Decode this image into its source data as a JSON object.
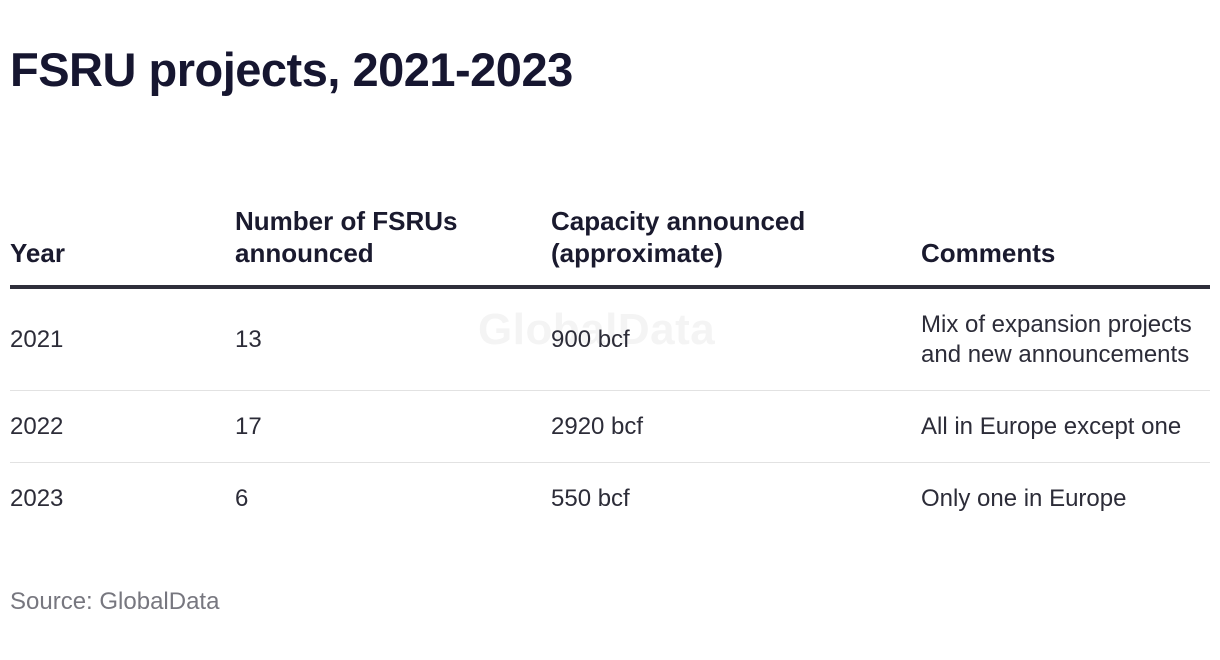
{
  "title": "FSRU projects, 2021-2023",
  "watermark": "GlobalData",
  "source": "Source: GlobalData",
  "chart_data": {
    "type": "table",
    "title": "FSRU projects, 2021-2023",
    "columns": [
      "Year",
      "Number of FSRUs announced",
      "Capacity announced (approximate)",
      "Comments"
    ],
    "rows": [
      [
        "2021",
        "13",
        "900 bcf",
        "Mix of expansion projects and new announcements"
      ],
      [
        "2022",
        "17",
        "2920 bcf",
        "All in Europe except one"
      ],
      [
        "2023",
        "6",
        "550 bcf",
        "Only one in Europe"
      ]
    ],
    "source": "Source: GlobalData"
  },
  "colors": {
    "title": "#161630",
    "header_rule": "#2e2e3a",
    "row_divider": "#e2e2e2",
    "source_text": "#77777f"
  }
}
